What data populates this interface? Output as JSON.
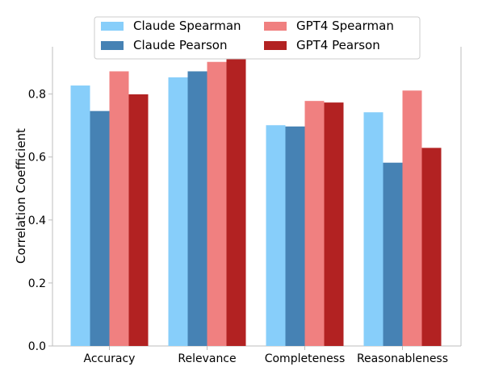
{
  "chart_data": {
    "type": "bar",
    "title": "",
    "xlabel": "",
    "ylabel": "Correlation Coefficient",
    "ylim": [
      0,
      0.95
    ],
    "yticks": [
      0.0,
      0.2,
      0.4,
      0.6,
      0.8
    ],
    "ytick_labels": [
      "0.0",
      "0.2",
      "0.4",
      "0.6",
      "0.8"
    ],
    "categories": [
      "Accuracy",
      "Relevance",
      "Completeness",
      "Reasonableness"
    ],
    "series": [
      {
        "name": "Claude Spearman",
        "color": "#87CEFA",
        "values": [
          0.827,
          0.853,
          0.701,
          0.742
        ]
      },
      {
        "name": "Claude Pearson",
        "color": "#4682B4",
        "values": [
          0.746,
          0.872,
          0.697,
          0.582
        ]
      },
      {
        "name": "GPT4 Spearman",
        "color": "#F08080",
        "values": [
          0.872,
          0.902,
          0.778,
          0.811
        ]
      },
      {
        "name": "GPT4 Pearson",
        "color": "#B22222",
        "values": [
          0.799,
          0.931,
          0.773,
          0.629
        ]
      }
    ],
    "grid": false,
    "legend_position": "top-center"
  }
}
